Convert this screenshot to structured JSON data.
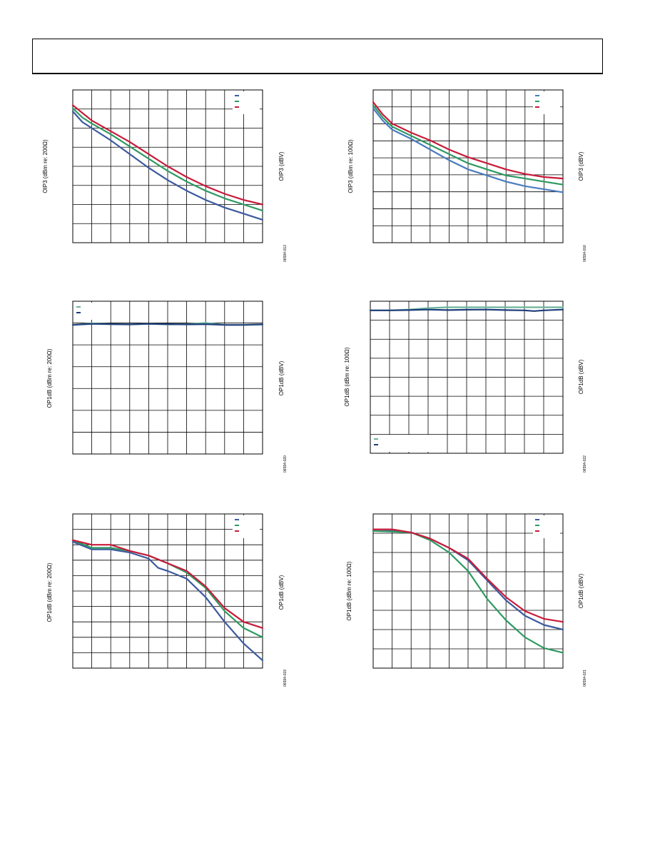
{
  "page": {
    "header": ""
  },
  "chart_data": [
    {
      "type": "line",
      "ylabel": "OIP3 (dBm re: 200Ω)",
      "y2label": "OIP3 (dBV)",
      "figure_id": "06594-013",
      "x_divisions": 10,
      "y_divisions": 8,
      "grid": true,
      "legend_position": "top-right",
      "series": [
        {
          "color": "#3c5a9e",
          "values": [
            [
              0,
              0.14
            ],
            [
              0.05,
              0.21
            ],
            [
              0.1,
              0.25
            ],
            [
              0.2,
              0.33
            ],
            [
              0.3,
              0.42
            ],
            [
              0.4,
              0.51
            ],
            [
              0.5,
              0.59
            ],
            [
              0.6,
              0.66
            ],
            [
              0.7,
              0.72
            ],
            [
              0.8,
              0.77
            ],
            [
              0.9,
              0.81
            ],
            [
              1,
              0.85
            ]
          ]
        },
        {
          "color": "#2e9a62",
          "values": [
            [
              0,
              0.12
            ],
            [
              0.05,
              0.18
            ],
            [
              0.1,
              0.22
            ],
            [
              0.2,
              0.29
            ],
            [
              0.3,
              0.37
            ],
            [
              0.4,
              0.45
            ],
            [
              0.5,
              0.53
            ],
            [
              0.6,
              0.6
            ],
            [
              0.7,
              0.66
            ],
            [
              0.8,
              0.71
            ],
            [
              0.9,
              0.75
            ],
            [
              1,
              0.79
            ]
          ]
        },
        {
          "color": "#c81b3a",
          "values": [
            [
              0,
              0.1
            ],
            [
              0.05,
              0.15
            ],
            [
              0.1,
              0.2
            ],
            [
              0.2,
              0.27
            ],
            [
              0.3,
              0.34
            ],
            [
              0.4,
              0.42
            ],
            [
              0.5,
              0.5
            ],
            [
              0.6,
              0.57
            ],
            [
              0.7,
              0.63
            ],
            [
              0.8,
              0.68
            ],
            [
              0.9,
              0.72
            ],
            [
              1,
              0.75
            ]
          ]
        }
      ]
    },
    {
      "type": "line",
      "ylabel": "OIP3 (dBm re: 100Ω)",
      "y2label": "OIP3 (dBV)",
      "figure_id": "06594-016",
      "x_divisions": 10,
      "y_divisions": 9,
      "grid": true,
      "legend_position": "top-right",
      "series": [
        {
          "color": "#4a7cc0",
          "values": [
            [
              0,
              0.12
            ],
            [
              0.05,
              0.2
            ],
            [
              0.1,
              0.26
            ],
            [
              0.2,
              0.32
            ],
            [
              0.3,
              0.39
            ],
            [
              0.4,
              0.46
            ],
            [
              0.5,
              0.52
            ],
            [
              0.6,
              0.56
            ],
            [
              0.7,
              0.6
            ],
            [
              0.8,
              0.63
            ],
            [
              0.9,
              0.65
            ],
            [
              1,
              0.67
            ]
          ]
        },
        {
          "color": "#2e9a62",
          "values": [
            [
              0,
              0.1
            ],
            [
              0.05,
              0.18
            ],
            [
              0.1,
              0.24
            ],
            [
              0.2,
              0.3
            ],
            [
              0.3,
              0.36
            ],
            [
              0.4,
              0.42
            ],
            [
              0.5,
              0.48
            ],
            [
              0.6,
              0.52
            ],
            [
              0.7,
              0.56
            ],
            [
              0.8,
              0.58
            ],
            [
              0.9,
              0.6
            ],
            [
              1,
              0.62
            ]
          ]
        },
        {
          "color": "#c81b3a",
          "values": [
            [
              0,
              0.08
            ],
            [
              0.05,
              0.16
            ],
            [
              0.1,
              0.22
            ],
            [
              0.2,
              0.28
            ],
            [
              0.3,
              0.33
            ],
            [
              0.4,
              0.39
            ],
            [
              0.5,
              0.44
            ],
            [
              0.6,
              0.48
            ],
            [
              0.7,
              0.52
            ],
            [
              0.8,
              0.55
            ],
            [
              0.9,
              0.57
            ],
            [
              1,
              0.58
            ]
          ]
        }
      ]
    },
    {
      "type": "line",
      "ylabel": "OP1dB (dBm re: 200Ω)",
      "y2label": "OP1dB (dBV)",
      "figure_id": "06594-020",
      "x_divisions": 10,
      "y_divisions": 7,
      "grid": true,
      "legend_position": "top-left",
      "series": [
        {
          "color": "#6cb39a",
          "values": [
            [
              0,
              0.155
            ],
            [
              0.1,
              0.145
            ],
            [
              0.2,
              0.15
            ],
            [
              0.3,
              0.152
            ],
            [
              0.4,
              0.148
            ],
            [
              0.5,
              0.153
            ],
            [
              0.6,
              0.15
            ],
            [
              0.7,
              0.142
            ],
            [
              0.8,
              0.155
            ],
            [
              0.9,
              0.155
            ],
            [
              1,
              0.152
            ]
          ]
        },
        {
          "color": "#1e3d7b",
          "values": [
            [
              0,
              0.155
            ],
            [
              0.1,
              0.148
            ],
            [
              0.2,
              0.15
            ],
            [
              0.3,
              0.152
            ],
            [
              0.4,
              0.148
            ],
            [
              0.5,
              0.15
            ],
            [
              0.6,
              0.152
            ],
            [
              0.7,
              0.15
            ],
            [
              0.8,
              0.155
            ],
            [
              0.9,
              0.155
            ],
            [
              1,
              0.152
            ]
          ]
        }
      ]
    },
    {
      "type": "line",
      "ylabel": "OP1dB (dBm re: 100Ω)",
      "y2label": "OP1dB (dBV)",
      "figure_id": "06594-022",
      "x_divisions": 10,
      "y_divisions": 8,
      "grid": true,
      "legend_position": "bottom-left",
      "series": [
        {
          "color": "#6cb39a",
          "values": [
            [
              0,
              0.06
            ],
            [
              0.1,
              0.06
            ],
            [
              0.2,
              0.055
            ],
            [
              0.3,
              0.045
            ],
            [
              0.4,
              0.04
            ],
            [
              0.5,
              0.04
            ],
            [
              0.6,
              0.04
            ],
            [
              0.7,
              0.04
            ],
            [
              0.8,
              0.04
            ],
            [
              0.9,
              0.04
            ],
            [
              1,
              0.04
            ]
          ]
        },
        {
          "color": "#1e3d7b",
          "values": [
            [
              0,
              0.06
            ],
            [
              0.1,
              0.06
            ],
            [
              0.2,
              0.058
            ],
            [
              0.3,
              0.055
            ],
            [
              0.4,
              0.058
            ],
            [
              0.5,
              0.056
            ],
            [
              0.6,
              0.055
            ],
            [
              0.7,
              0.058
            ],
            [
              0.8,
              0.06
            ],
            [
              0.85,
              0.065
            ],
            [
              0.9,
              0.06
            ],
            [
              1,
              0.055
            ]
          ]
        }
      ]
    },
    {
      "type": "line",
      "ylabel": "OP1dB (dBm re: 200Ω)",
      "y2label": "OP1dB (dBV)",
      "figure_id": "06594-019",
      "x_divisions": 10,
      "y_divisions": 10,
      "grid": true,
      "legend_position": "top-right",
      "series": [
        {
          "color": "#3c5a9e",
          "values": [
            [
              0,
              0.18
            ],
            [
              0.1,
              0.23
            ],
            [
              0.2,
              0.23
            ],
            [
              0.3,
              0.25
            ],
            [
              0.4,
              0.29
            ],
            [
              0.45,
              0.35
            ],
            [
              0.5,
              0.37
            ],
            [
              0.6,
              0.42
            ],
            [
              0.7,
              0.54
            ],
            [
              0.8,
              0.7
            ],
            [
              0.9,
              0.84
            ],
            [
              1,
              0.95
            ]
          ]
        },
        {
          "color": "#2e9a62",
          "values": [
            [
              0,
              0.17
            ],
            [
              0.1,
              0.22
            ],
            [
              0.2,
              0.22
            ],
            [
              0.3,
              0.24
            ],
            [
              0.4,
              0.27
            ],
            [
              0.5,
              0.32
            ],
            [
              0.6,
              0.38
            ],
            [
              0.7,
              0.48
            ],
            [
              0.8,
              0.63
            ],
            [
              0.9,
              0.74
            ],
            [
              1,
              0.8
            ]
          ]
        },
        {
          "color": "#c81b3a",
          "values": [
            [
              0,
              0.17
            ],
            [
              0.1,
              0.2
            ],
            [
              0.2,
              0.2
            ],
            [
              0.3,
              0.24
            ],
            [
              0.4,
              0.27
            ],
            [
              0.5,
              0.32
            ],
            [
              0.6,
              0.37
            ],
            [
              0.7,
              0.47
            ],
            [
              0.8,
              0.61
            ],
            [
              0.9,
              0.7
            ],
            [
              1,
              0.74
            ]
          ]
        }
      ]
    },
    {
      "type": "line",
      "ylabel": "OP1dB (dBm re: 100Ω)",
      "y2label": "OP1dB (dBV)",
      "figure_id": "06594-021",
      "x_divisions": 10,
      "y_divisions": 8,
      "grid": true,
      "legend_position": "top-right",
      "series": [
        {
          "color": "#3c5a9e",
          "values": [
            [
              0,
              0.11
            ],
            [
              0.1,
              0.11
            ],
            [
              0.2,
              0.12
            ],
            [
              0.3,
              0.16
            ],
            [
              0.4,
              0.22
            ],
            [
              0.5,
              0.3
            ],
            [
              0.6,
              0.43
            ],
            [
              0.7,
              0.56
            ],
            [
              0.8,
              0.66
            ],
            [
              0.9,
              0.72
            ],
            [
              1,
              0.75
            ]
          ]
        },
        {
          "color": "#2e9a62",
          "values": [
            [
              0,
              0.11
            ],
            [
              0.1,
              0.115
            ],
            [
              0.2,
              0.12
            ],
            [
              0.3,
              0.17
            ],
            [
              0.4,
              0.25
            ],
            [
              0.5,
              0.37
            ],
            [
              0.6,
              0.55
            ],
            [
              0.7,
              0.69
            ],
            [
              0.8,
              0.8
            ],
            [
              0.9,
              0.87
            ],
            [
              1,
              0.9
            ]
          ]
        },
        {
          "color": "#c81b3a",
          "values": [
            [
              0,
              0.1
            ],
            [
              0.1,
              0.1
            ],
            [
              0.2,
              0.12
            ],
            [
              0.3,
              0.16
            ],
            [
              0.4,
              0.22
            ],
            [
              0.5,
              0.29
            ],
            [
              0.6,
              0.42
            ],
            [
              0.7,
              0.54
            ],
            [
              0.8,
              0.63
            ],
            [
              0.9,
              0.68
            ],
            [
              1,
              0.7
            ]
          ]
        }
      ]
    }
  ]
}
